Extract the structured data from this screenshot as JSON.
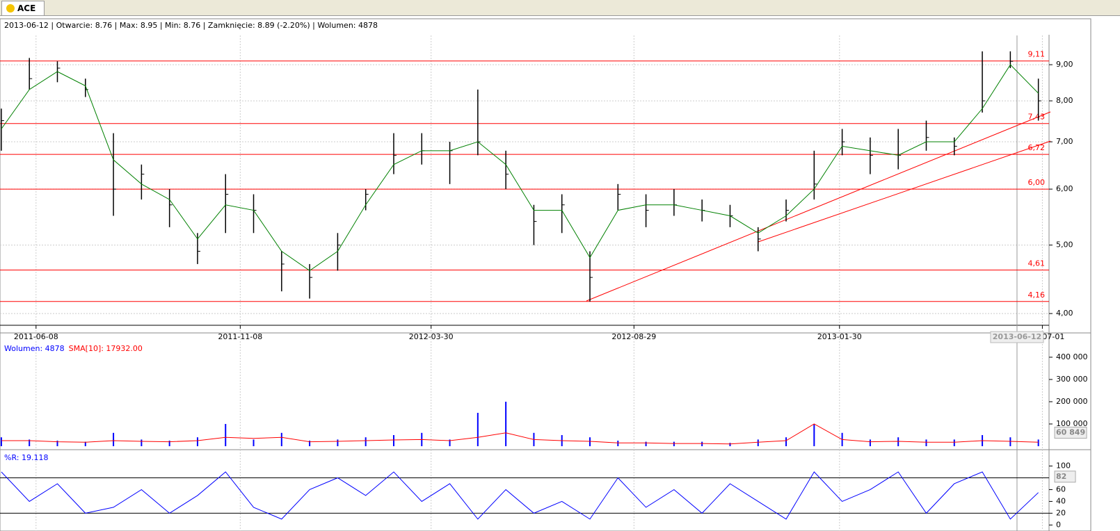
{
  "tab": "ACE",
  "info": "2013-06-12 | Otwarcie: 8.76 | Max: 8.95 | Min: 8.76 | Zamknięcie: 8.89 (-2.20%)  | Wolumen: 4878",
  "chart_data": [
    {
      "type": "ohlc",
      "log_scale": true,
      "grid": true,
      "x": [
        "2011-05-13",
        "2011-06-03",
        "2011-06-24",
        "2011-07-15",
        "2011-08-05",
        "2011-08-26",
        "2011-09-16",
        "2011-10-07",
        "2011-10-28",
        "2011-11-18",
        "2011-12-09",
        "2011-12-30",
        "2012-01-20",
        "2012-02-10",
        "2012-03-02",
        "2012-03-23",
        "2012-04-13",
        "2012-05-04",
        "2012-05-25",
        "2012-06-15",
        "2012-07-06",
        "2012-07-27",
        "2012-08-17",
        "2012-09-07",
        "2012-09-28",
        "2012-10-19",
        "2012-11-09",
        "2012-11-30",
        "2012-12-21",
        "2013-01-11",
        "2013-02-01",
        "2013-02-22",
        "2013-03-15",
        "2013-04-05",
        "2013-04-26",
        "2013-05-17",
        "2013-06-07",
        "2013-06-28"
      ],
      "high": [
        7.8,
        9.2,
        9.1,
        8.6,
        7.2,
        6.5,
        6.0,
        5.2,
        6.3,
        5.9,
        4.9,
        4.7,
        5.2,
        6.0,
        7.2,
        7.2,
        7.0,
        8.3,
        6.8,
        5.7,
        5.9,
        4.9,
        6.1,
        5.9,
        6.0,
        5.8,
        5.7,
        5.3,
        5.8,
        6.8,
        7.3,
        7.1,
        7.3,
        7.5,
        7.1,
        9.4,
        9.4,
        8.6
      ],
      "low": [
        6.8,
        8.3,
        8.5,
        8.1,
        5.5,
        5.8,
        5.3,
        4.7,
        5.2,
        5.2,
        4.3,
        4.2,
        4.6,
        5.6,
        6.3,
        6.5,
        6.1,
        6.7,
        6.0,
        5.0,
        5.2,
        4.16,
        5.6,
        5.3,
        5.5,
        5.4,
        5.3,
        4.9,
        5.4,
        5.8,
        6.7,
        6.3,
        6.4,
        6.8,
        6.7,
        7.7,
        8.9,
        7.5
      ],
      "close": [
        7.5,
        8.6,
        8.9,
        8.3,
        6.0,
        6.3,
        5.7,
        4.9,
        5.9,
        5.6,
        4.7,
        4.5,
        5.0,
        5.9,
        6.7,
        6.8,
        6.8,
        7.0,
        6.3,
        5.4,
        5.7,
        4.5,
        5.9,
        5.6,
        5.7,
        5.6,
        5.5,
        5.1,
        5.6,
        6.1,
        7.0,
        6.7,
        6.7,
        7.1,
        6.9,
        8.0,
        9.1,
        8.0
      ],
      "ma": {
        "color": "#008000",
        "values": [
          7.3,
          8.3,
          8.8,
          8.4,
          6.6,
          6.1,
          5.8,
          5.1,
          5.7,
          5.6,
          4.9,
          4.6,
          4.9,
          5.7,
          6.5,
          6.8,
          6.8,
          7.0,
          6.5,
          5.6,
          5.6,
          4.8,
          5.6,
          5.7,
          5.7,
          5.6,
          5.5,
          5.2,
          5.5,
          6.0,
          6.9,
          6.8,
          6.7,
          7.0,
          7.0,
          7.8,
          9.0,
          8.2
        ]
      },
      "bar_color": "#000000",
      "xlim": [
        "2011-05-12",
        "2013-07-06"
      ],
      "xticks": [
        "2011-06-08",
        "2011-11-08",
        "2012-03-30",
        "2012-08-29",
        "2013-01-30",
        "2013-07-01"
      ],
      "cursor": "2013-06-12",
      "ylim": [
        3.85,
        9.9
      ],
      "yticks": [
        {
          "value": 4,
          "label": "4,00"
        },
        {
          "value": 5,
          "label": "5,00"
        },
        {
          "value": 6,
          "label": "6,00"
        },
        {
          "value": 7,
          "label": "7,00"
        },
        {
          "value": 8,
          "label": "8,00"
        },
        {
          "value": 9,
          "label": "9,00"
        }
      ],
      "levels": [
        {
          "value": 9.11,
          "label": "9,11"
        },
        {
          "value": 7.43,
          "label": "7,43"
        },
        {
          "value": 6.72,
          "label": "6,72"
        },
        {
          "value": 6.0,
          "label": "6,00"
        },
        {
          "value": 4.61,
          "label": "4,61"
        },
        {
          "value": 4.16,
          "label": "4,16"
        }
      ],
      "level_color": "#ff0000"
    },
    {
      "type": "bar",
      "series": [
        {
          "name": "Wolumen: 4878",
          "color": "#0000ff",
          "values": [
            40000,
            30000,
            25000,
            20000,
            60000,
            30000,
            25000,
            40000,
            100000,
            30000,
            60000,
            25000,
            30000,
            40000,
            50000,
            60000,
            30000,
            150000,
            200000,
            60000,
            50000,
            40000,
            25000,
            20000,
            20000,
            20000,
            15000,
            30000,
            40000,
            100000,
            60000,
            30000,
            40000,
            30000,
            30000,
            50000,
            40000,
            30000
          ]
        },
        {
          "name": "SMA[10]: 17932.00",
          "color": "#ff0000",
          "values": [
            25000,
            25000,
            20000,
            18000,
            25000,
            22000,
            20000,
            25000,
            40000,
            35000,
            40000,
            20000,
            22000,
            25000,
            28000,
            30000,
            25000,
            40000,
            60000,
            30000,
            25000,
            22000,
            15000,
            15000,
            12000,
            12000,
            10000,
            18000,
            25000,
            100000,
            30000,
            20000,
            22000,
            18000,
            18000,
            25000,
            22000,
            17932
          ]
        }
      ],
      "ylim": [
        0,
        428000
      ],
      "yticks": [
        {
          "value": 100000,
          "label": "100 000"
        },
        {
          "value": 200000,
          "label": "200 000"
        },
        {
          "value": 300000,
          "label": "300 000"
        },
        {
          "value": 400000,
          "label": "400 000"
        }
      ],
      "last_value": {
        "value": 60849,
        "label": "60 849"
      }
    },
    {
      "type": "line",
      "series": [
        {
          "name": "%R: 19.118",
          "color": "#0000ff",
          "values": [
            90,
            40,
            70,
            20,
            30,
            60,
            20,
            50,
            90,
            30,
            10,
            60,
            80,
            50,
            90,
            40,
            70,
            10,
            60,
            20,
            40,
            10,
            80,
            30,
            60,
            20,
            70,
            40,
            10,
            90,
            40,
            60,
            90,
            20,
            70,
            90,
            10,
            55
          ]
        }
      ],
      "ylim": [
        -9,
        123
      ],
      "yticks": [
        0,
        20,
        40,
        60,
        100
      ],
      "levels": [
        20,
        80
      ],
      "last_value": 82
    }
  ]
}
